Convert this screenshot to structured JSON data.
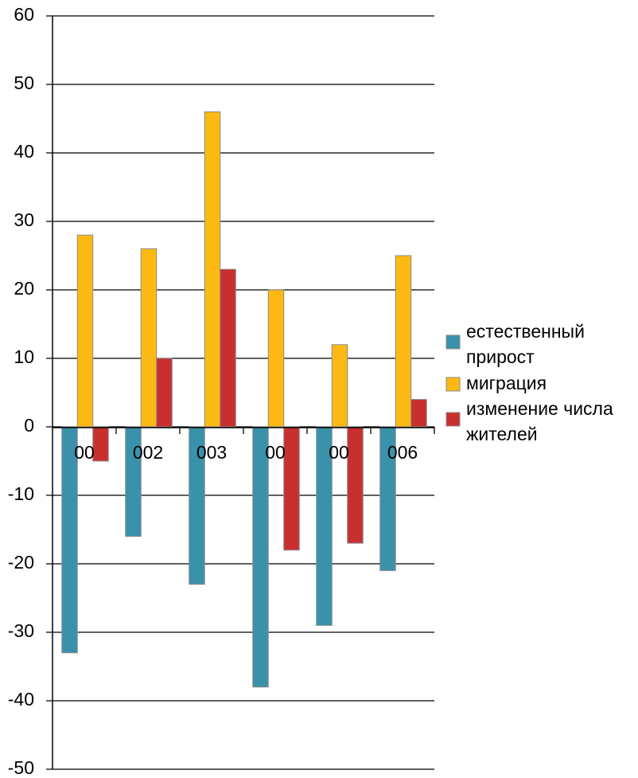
{
  "chart_data": {
    "type": "bar",
    "categories": [
      "00",
      "002",
      "003",
      "00",
      "00",
      "006"
    ],
    "series": [
      {
        "name": "естественный прирост",
        "color": "#3a91aa",
        "values": [
          -33,
          -16,
          -23,
          -38,
          -29,
          -21
        ]
      },
      {
        "name": "миграция",
        "color": "#fdb913",
        "values": [
          28,
          26,
          46,
          20,
          12,
          25
        ]
      },
      {
        "name": "изменение числа жителей",
        "color": "#c8302f",
        "values": [
          -5,
          10,
          23,
          -18,
          -17,
          4
        ]
      }
    ],
    "legend_lines": [
      [
        "естественный",
        "прирост"
      ],
      [
        "миграция"
      ],
      [
        "изменение числа",
        "жителей"
      ]
    ],
    "yticks": [
      "60",
      "50",
      "40",
      "30",
      "20",
      "10",
      "0",
      "-10",
      "-20",
      "-30",
      "-40",
      "-50"
    ],
    "ylim": [
      -50,
      60
    ],
    "grid": true,
    "legend_position": "right"
  }
}
